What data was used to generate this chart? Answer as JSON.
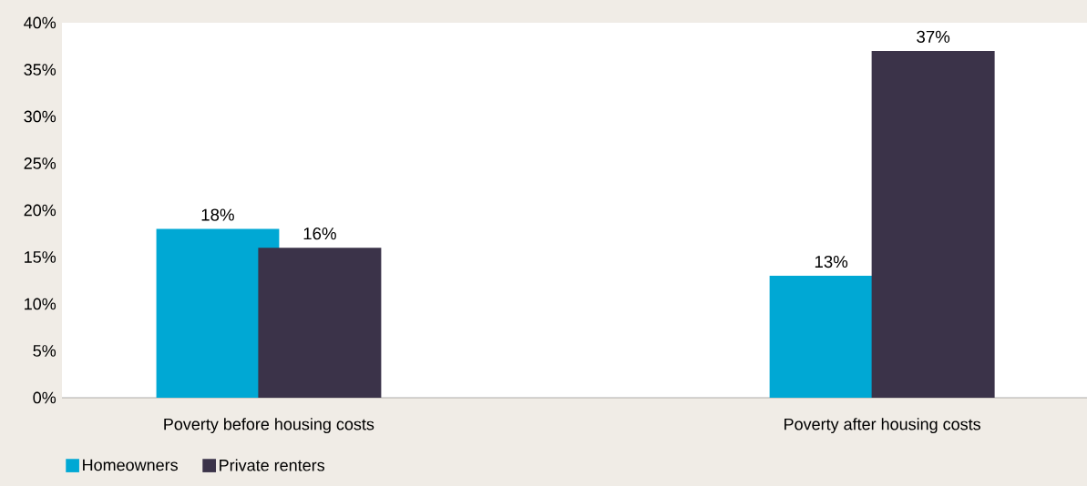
{
  "chart_data": {
    "type": "bar",
    "categories": [
      "Poverty before housing costs",
      "Poverty after housing costs"
    ],
    "series": [
      {
        "name": "Homeowners",
        "color": "#00a8d4",
        "values": [
          18,
          13
        ],
        "value_labels": [
          "18%",
          "13%"
        ]
      },
      {
        "name": "Private renters",
        "color": "#3b3349",
        "values": [
          16,
          37
        ],
        "value_labels": [
          "16%",
          "37%"
        ]
      }
    ],
    "ylim": [
      0,
      40
    ],
    "yticks": [
      {
        "value": 0,
        "label": "0%"
      },
      {
        "value": 5,
        "label": "5%"
      },
      {
        "value": 10,
        "label": "10%"
      },
      {
        "value": 15,
        "label": "15%"
      },
      {
        "value": 20,
        "label": "20%"
      },
      {
        "value": 25,
        "label": "25%"
      },
      {
        "value": 30,
        "label": "30%"
      },
      {
        "value": 35,
        "label": "35%"
      },
      {
        "value": 40,
        "label": "40%"
      }
    ],
    "legend": "bottom left"
  }
}
